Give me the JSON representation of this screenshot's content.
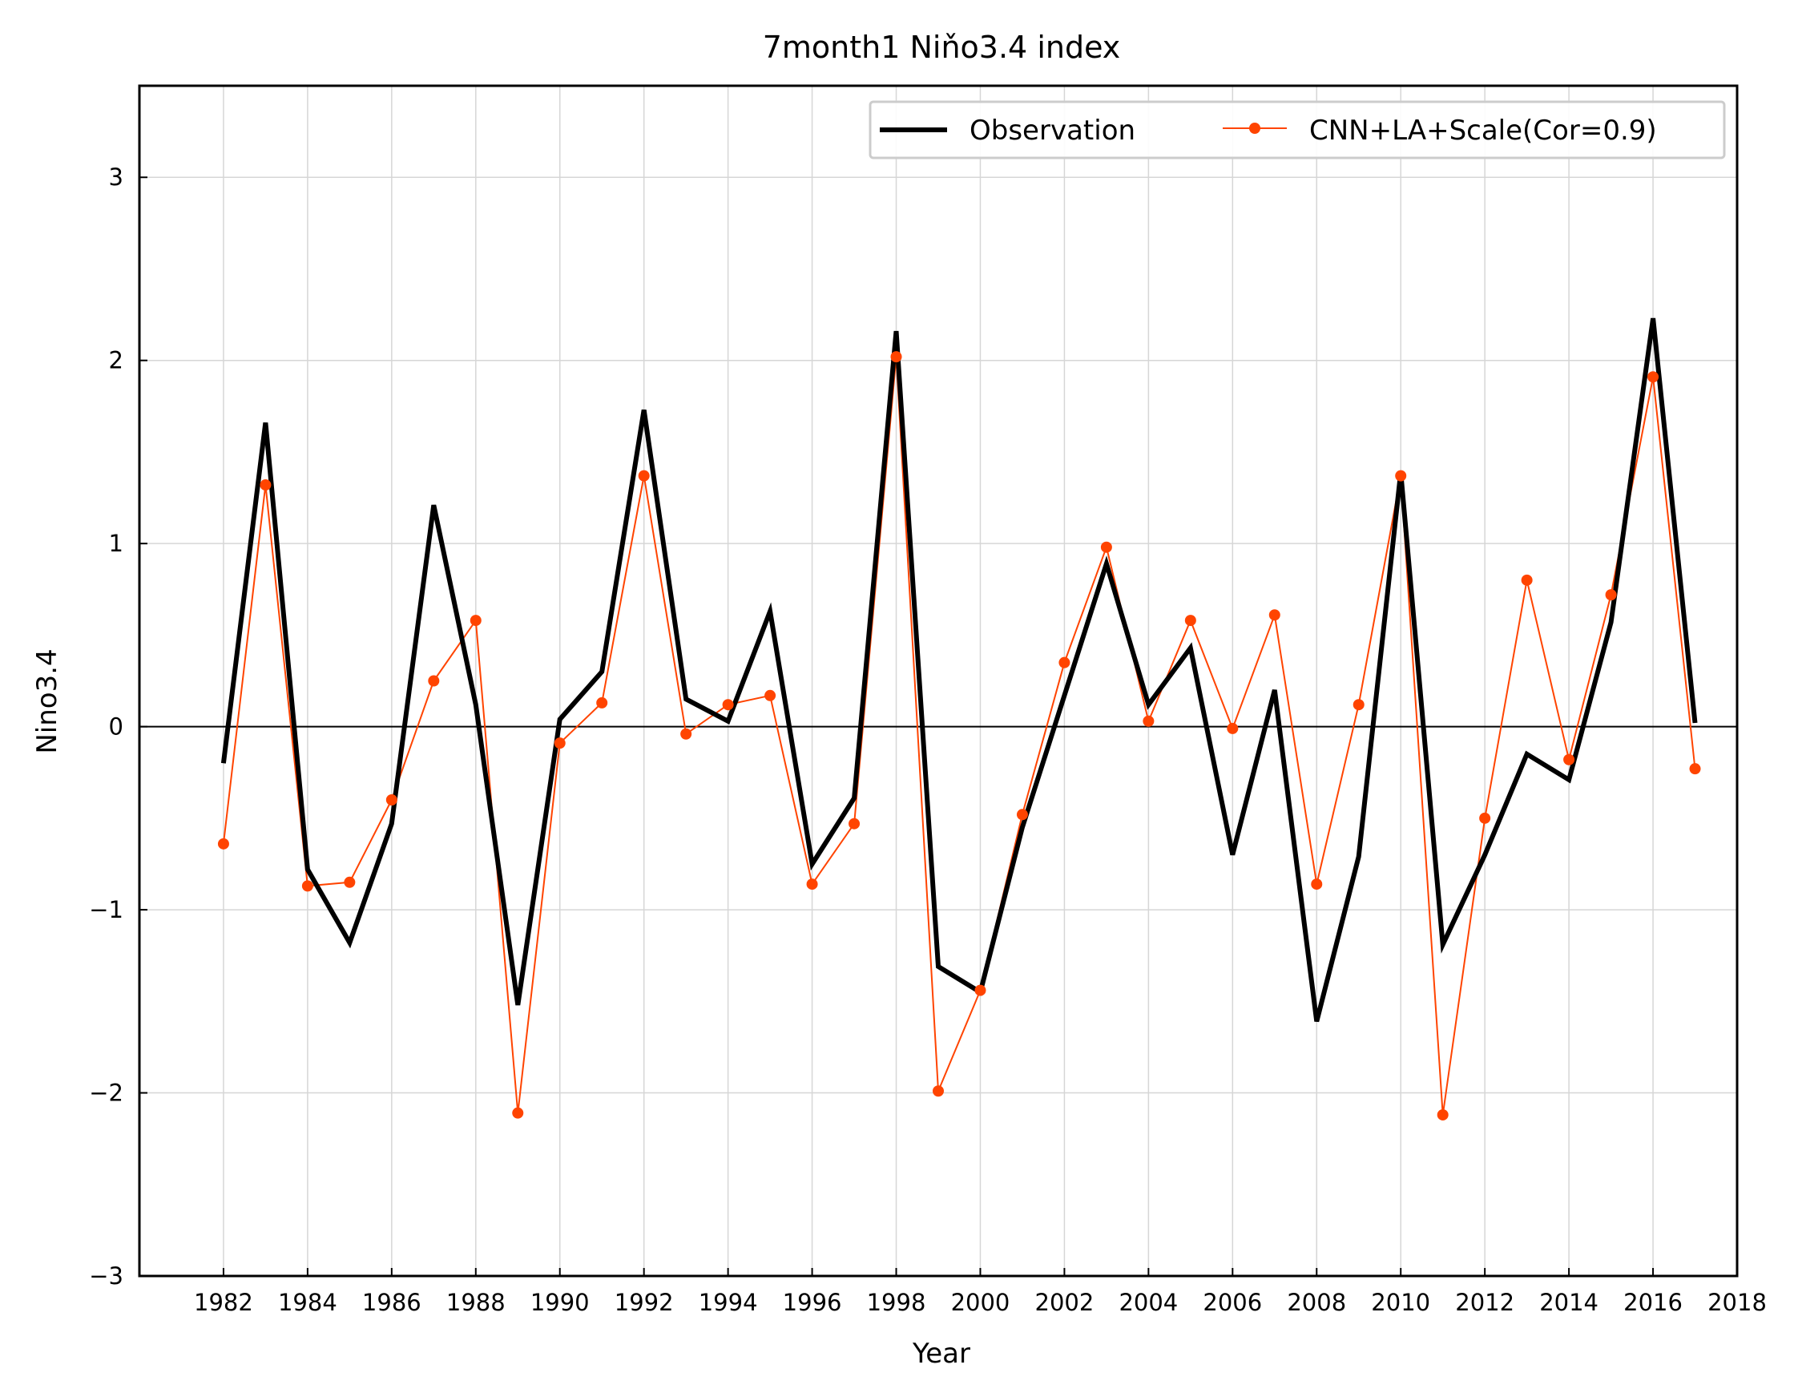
{
  "chart_data": {
    "type": "line",
    "title": "7month1 Niňo3.4 index",
    "xlabel": "Year",
    "ylabel": "Nino3.4",
    "xlim": [
      1980,
      2018
    ],
    "ylim": [
      -3,
      3.5
    ],
    "xticks": [
      "1982",
      "1984",
      "1986",
      "1988",
      "1990",
      "1992",
      "1994",
      "1996",
      "1998",
      "2000",
      "2002",
      "2004",
      "2006",
      "2008",
      "2010",
      "2012",
      "2014",
      "2016",
      "2018"
    ],
    "yticks": [
      "−3",
      "−2",
      "−1",
      "0",
      "1",
      "2",
      "3"
    ],
    "grid": true,
    "legend_position": "top-right",
    "zero_line": true,
    "x": [
      1982,
      1983,
      1984,
      1985,
      1986,
      1987,
      1988,
      1989,
      1990,
      1991,
      1992,
      1993,
      1994,
      1995,
      1996,
      1997,
      1998,
      1999,
      2000,
      2001,
      2002,
      2003,
      2004,
      2005,
      2006,
      2007,
      2008,
      2009,
      2010,
      2011,
      2012,
      2013,
      2014,
      2015,
      2016,
      2017
    ],
    "series": [
      {
        "name": "Observation",
        "color": "#000000",
        "marker": false,
        "values": [
          -0.2,
          1.66,
          -0.78,
          -1.18,
          -0.53,
          1.21,
          0.12,
          -1.52,
          0.04,
          0.3,
          1.73,
          0.15,
          0.03,
          0.63,
          -0.75,
          -0.39,
          2.16,
          -1.31,
          -1.45,
          -0.55,
          0.17,
          0.89,
          0.12,
          0.43,
          -0.7,
          0.2,
          -1.61,
          -0.71,
          1.39,
          -1.19,
          -0.7,
          -0.15,
          -0.29,
          0.57,
          2.23,
          0.02
        ]
      },
      {
        "name": "CNN+LA+Scale(Cor=0.9)",
        "color": "#ff4400",
        "marker": true,
        "values": [
          -0.64,
          1.32,
          -0.87,
          -0.85,
          -0.4,
          0.25,
          0.58,
          -2.11,
          -0.09,
          0.13,
          1.37,
          -0.04,
          0.12,
          0.17,
          -0.86,
          -0.53,
          2.02,
          -1.99,
          -1.44,
          -0.48,
          0.35,
          0.98,
          0.03,
          0.58,
          -0.01,
          0.61,
          -0.86,
          0.12,
          1.37,
          -2.12,
          -0.5,
          0.8,
          -0.18,
          0.72,
          1.91,
          -0.23
        ]
      }
    ]
  }
}
